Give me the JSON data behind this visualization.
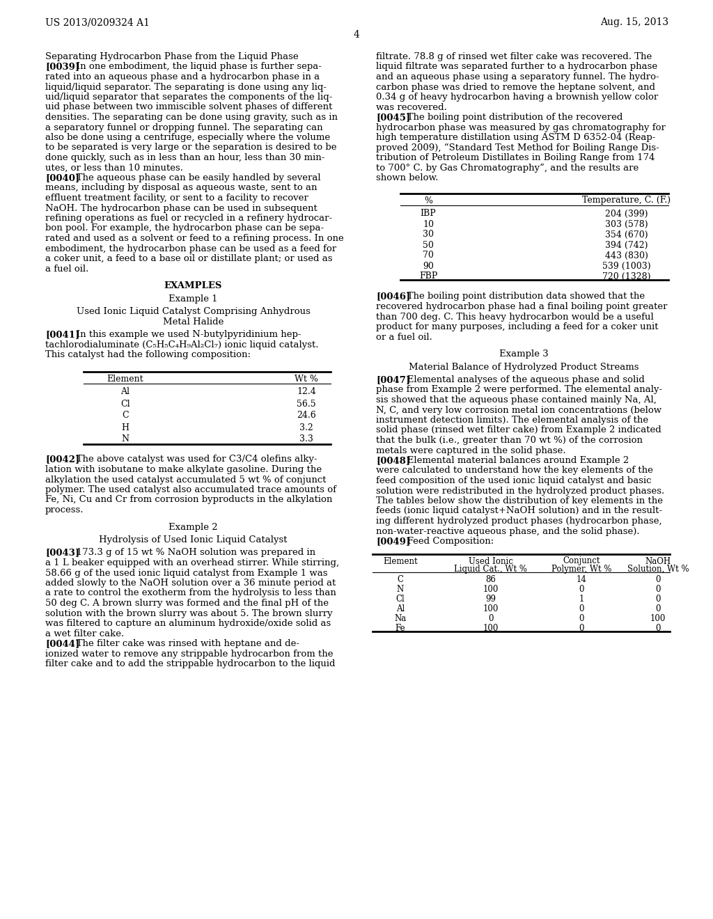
{
  "bg_color": "#ffffff",
  "header_left": "US 2013/0209324 A1",
  "header_right": "Aug. 15, 2013",
  "page_number": "4",
  "table1": {
    "headers": [
      "Element",
      "Wt %"
    ],
    "rows": [
      [
        "Al",
        "12.4"
      ],
      [
        "Cl",
        "56.5"
      ],
      [
        "C",
        "24.6"
      ],
      [
        "H",
        "3.2"
      ],
      [
        "N",
        "3.3"
      ]
    ]
  },
  "table2": {
    "headers": [
      "%",
      "Temperature, C. (F.)"
    ],
    "rows": [
      [
        "IBP",
        "204 (399)"
      ],
      [
        "10",
        "303 (578)"
      ],
      [
        "30",
        "354 (670)"
      ],
      [
        "50",
        "394 (742)"
      ],
      [
        "70",
        "443 (830)"
      ],
      [
        "90",
        "539 (1003)"
      ],
      [
        "FBP",
        "720 (1328)"
      ]
    ]
  },
  "table3": {
    "headers": [
      "Element",
      "Used Ionic\nLiquid Cat., Wt %",
      "Conjunct\nPolymer, Wt %",
      "NaOH\nSolution, Wt %"
    ],
    "rows": [
      [
        "C",
        "86",
        "14",
        "0"
      ],
      [
        "N",
        "100",
        "0",
        "0"
      ],
      [
        "Cl",
        "99",
        "1",
        "0"
      ],
      [
        "Al",
        "100",
        "0",
        "0"
      ],
      [
        "Na",
        "0",
        "0",
        "100"
      ],
      [
        "Fe",
        "100",
        "0",
        "0"
      ]
    ]
  }
}
